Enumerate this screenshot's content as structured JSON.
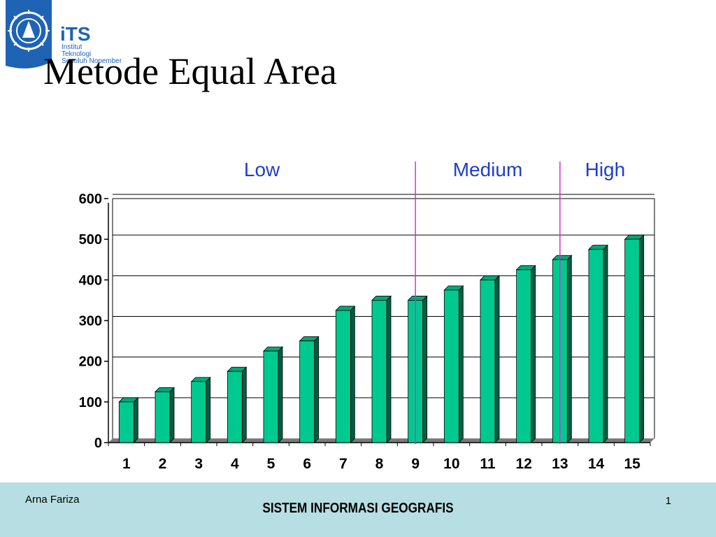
{
  "logo": {
    "abbr": "iTS",
    "line1": "Institut",
    "line2": "Teknologi",
    "line3": "Sepuluh Nopember",
    "icon": "its-emblem-icon",
    "color": "#1e63b4"
  },
  "slide": {
    "title": "Metode Equal Area"
  },
  "footer": {
    "author": "Arna Fariza",
    "course": "SISTEM INFORMASI GEOGRAFIS",
    "page": "1"
  },
  "chart_data": {
    "type": "bar",
    "categories": [
      "1",
      "2",
      "3",
      "4",
      "5",
      "6",
      "7",
      "8",
      "9",
      "10",
      "11",
      "12",
      "13",
      "14",
      "15"
    ],
    "values": [
      100,
      125,
      150,
      175,
      225,
      250,
      325,
      350,
      350,
      375,
      400,
      425,
      450,
      475,
      500
    ],
    "ylim": [
      0,
      600
    ],
    "yticks": [
      0,
      100,
      200,
      300,
      400,
      500,
      600
    ],
    "grid": true,
    "bar_color": "#00c990",
    "class_labels": [
      "Low",
      "Medium",
      "High"
    ],
    "class_label_color": "#1c3fd0",
    "divider_color": "#cc33cc",
    "class_breaks": [
      8.5,
      12.5
    ]
  }
}
